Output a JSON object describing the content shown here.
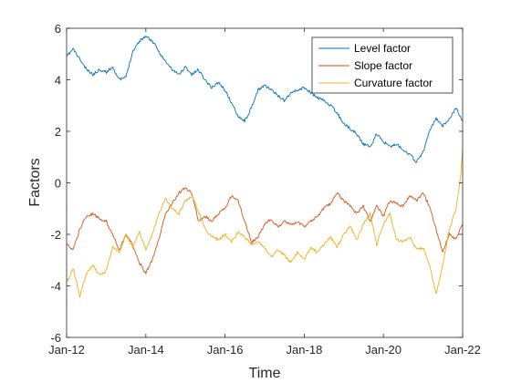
{
  "chart_data": {
    "type": "line",
    "title": "",
    "xlabel": "Time",
    "ylabel": "Factors",
    "xlim": [
      "2012-01-01",
      "2022-01-01"
    ],
    "ylim": [
      -6,
      6
    ],
    "xticks": [
      {
        "date": "2012-01-01",
        "label": "Jan-12"
      },
      {
        "date": "2014-01-01",
        "label": "Jan-14"
      },
      {
        "date": "2016-01-01",
        "label": "Jan-16"
      },
      {
        "date": "2018-01-01",
        "label": "Jan-18"
      },
      {
        "date": "2020-01-01",
        "label": "Jan-20"
      },
      {
        "date": "2022-01-01",
        "label": "Jan-22"
      }
    ],
    "yticks": [
      -6,
      -4,
      -2,
      0,
      2,
      4,
      6
    ],
    "grid": false,
    "legend_position": "top-right",
    "series": [
      {
        "name": "Level factor",
        "color": "#0072BD",
        "points": [
          [
            "2012-01-01",
            4.9
          ],
          [
            "2012-03-01",
            5.2
          ],
          [
            "2012-05-01",
            4.8
          ],
          [
            "2012-07-01",
            4.4
          ],
          [
            "2012-09-01",
            4.2
          ],
          [
            "2012-11-01",
            4.4
          ],
          [
            "2013-01-01",
            4.3
          ],
          [
            "2013-03-01",
            4.5
          ],
          [
            "2013-05-01",
            4.0
          ],
          [
            "2013-07-01",
            4.1
          ],
          [
            "2013-09-01",
            5.1
          ],
          [
            "2013-11-01",
            5.5
          ],
          [
            "2014-01-01",
            5.7
          ],
          [
            "2014-03-01",
            5.5
          ],
          [
            "2014-05-01",
            5.1
          ],
          [
            "2014-07-01",
            4.7
          ],
          [
            "2014-09-01",
            4.4
          ],
          [
            "2014-11-01",
            4.2
          ],
          [
            "2015-01-01",
            4.5
          ],
          [
            "2015-03-01",
            4.2
          ],
          [
            "2015-05-01",
            4.4
          ],
          [
            "2015-07-01",
            4.0
          ],
          [
            "2015-09-01",
            3.7
          ],
          [
            "2015-11-01",
            3.9
          ],
          [
            "2016-01-01",
            3.6
          ],
          [
            "2016-03-01",
            3.1
          ],
          [
            "2016-05-01",
            2.6
          ],
          [
            "2016-07-01",
            2.4
          ],
          [
            "2016-09-01",
            2.9
          ],
          [
            "2016-11-01",
            3.6
          ],
          [
            "2017-01-01",
            3.8
          ],
          [
            "2017-03-01",
            3.6
          ],
          [
            "2017-05-01",
            3.4
          ],
          [
            "2017-07-01",
            3.2
          ],
          [
            "2017-09-01",
            3.5
          ],
          [
            "2017-11-01",
            3.6
          ],
          [
            "2018-01-01",
            3.7
          ],
          [
            "2018-03-01",
            3.5
          ],
          [
            "2018-05-01",
            3.3
          ],
          [
            "2018-07-01",
            3.2
          ],
          [
            "2018-09-01",
            3.0
          ],
          [
            "2018-11-01",
            2.7
          ],
          [
            "2019-01-01",
            2.3
          ],
          [
            "2019-03-01",
            2.1
          ],
          [
            "2019-05-01",
            1.9
          ],
          [
            "2019-07-01",
            1.5
          ],
          [
            "2019-09-01",
            1.4
          ],
          [
            "2019-11-01",
            1.9
          ],
          [
            "2020-01-01",
            1.6
          ],
          [
            "2020-03-01",
            1.4
          ],
          [
            "2020-05-01",
            1.5
          ],
          [
            "2020-07-01",
            1.3
          ],
          [
            "2020-09-01",
            1.1
          ],
          [
            "2020-11-01",
            0.8
          ],
          [
            "2021-01-01",
            1.2
          ],
          [
            "2021-03-01",
            2.0
          ],
          [
            "2021-05-01",
            2.5
          ],
          [
            "2021-07-01",
            2.2
          ],
          [
            "2021-09-01",
            2.5
          ],
          [
            "2021-11-01",
            2.9
          ],
          [
            "2022-01-01",
            2.4
          ]
        ]
      },
      {
        "name": "Slope factor",
        "color": "#D95319",
        "points": [
          [
            "2012-01-01",
            -2.4
          ],
          [
            "2012-03-01",
            -2.6
          ],
          [
            "2012-05-01",
            -1.8
          ],
          [
            "2012-07-01",
            -1.3
          ],
          [
            "2012-09-01",
            -1.2
          ],
          [
            "2012-11-01",
            -1.4
          ],
          [
            "2013-01-01",
            -1.5
          ],
          [
            "2013-03-01",
            -2.0
          ],
          [
            "2013-05-01",
            -2.6
          ],
          [
            "2013-07-01",
            -2.0
          ],
          [
            "2013-09-01",
            -2.4
          ],
          [
            "2013-11-01",
            -3.1
          ],
          [
            "2014-01-01",
            -3.5
          ],
          [
            "2014-03-01",
            -3.0
          ],
          [
            "2014-05-01",
            -2.2
          ],
          [
            "2014-07-01",
            -1.2
          ],
          [
            "2014-09-01",
            -0.8
          ],
          [
            "2014-11-01",
            -0.4
          ],
          [
            "2015-01-01",
            -0.2
          ],
          [
            "2015-03-01",
            -0.4
          ],
          [
            "2015-05-01",
            -1.5
          ],
          [
            "2015-07-01",
            -1.3
          ],
          [
            "2015-09-01",
            -1.5
          ],
          [
            "2015-11-01",
            -1.2
          ],
          [
            "2016-01-01",
            -1.0
          ],
          [
            "2016-03-01",
            -0.5
          ],
          [
            "2016-05-01",
            -0.7
          ],
          [
            "2016-07-01",
            -1.5
          ],
          [
            "2016-09-01",
            -2.3
          ],
          [
            "2016-11-01",
            -2.1
          ],
          [
            "2017-01-01",
            -1.6
          ],
          [
            "2017-03-01",
            -1.4
          ],
          [
            "2017-05-01",
            -1.7
          ],
          [
            "2017-07-01",
            -1.5
          ],
          [
            "2017-09-01",
            -1.6
          ],
          [
            "2017-11-01",
            -1.5
          ],
          [
            "2018-01-01",
            -1.7
          ],
          [
            "2018-03-01",
            -1.5
          ],
          [
            "2018-05-01",
            -1.3
          ],
          [
            "2018-07-01",
            -1.0
          ],
          [
            "2018-09-01",
            -0.8
          ],
          [
            "2018-11-01",
            -0.4
          ],
          [
            "2019-01-01",
            -0.7
          ],
          [
            "2019-03-01",
            -0.9
          ],
          [
            "2019-05-01",
            -1.2
          ],
          [
            "2019-07-01",
            -0.9
          ],
          [
            "2019-09-01",
            -1.5
          ],
          [
            "2019-11-01",
            -0.9
          ],
          [
            "2020-01-01",
            -1.3
          ],
          [
            "2020-03-01",
            -0.7
          ],
          [
            "2020-05-01",
            -0.8
          ],
          [
            "2020-07-01",
            -0.9
          ],
          [
            "2020-09-01",
            -0.5
          ],
          [
            "2020-11-01",
            -0.7
          ],
          [
            "2021-01-01",
            -0.4
          ],
          [
            "2021-03-01",
            -0.9
          ],
          [
            "2021-05-01",
            -1.8
          ],
          [
            "2021-07-01",
            -2.7
          ],
          [
            "2021-09-01",
            -2.0
          ],
          [
            "2021-11-01",
            -2.2
          ],
          [
            "2022-01-01",
            -1.6
          ]
        ]
      },
      {
        "name": "Curvature factor",
        "color": "#EDB120",
        "points": [
          [
            "2012-01-01",
            -3.9
          ],
          [
            "2012-03-01",
            -3.3
          ],
          [
            "2012-05-01",
            -4.4
          ],
          [
            "2012-07-01",
            -3.5
          ],
          [
            "2012-09-01",
            -3.2
          ],
          [
            "2012-11-01",
            -3.6
          ],
          [
            "2013-01-01",
            -3.4
          ],
          [
            "2013-03-01",
            -2.5
          ],
          [
            "2013-05-01",
            -2.7
          ],
          [
            "2013-07-01",
            -2.0
          ],
          [
            "2013-09-01",
            -2.5
          ],
          [
            "2013-11-01",
            -1.9
          ],
          [
            "2014-01-01",
            -2.6
          ],
          [
            "2014-03-01",
            -2.0
          ],
          [
            "2014-05-01",
            -1.2
          ],
          [
            "2014-07-01",
            -0.6
          ],
          [
            "2014-09-01",
            -1.0
          ],
          [
            "2014-11-01",
            -1.2
          ],
          [
            "2015-01-01",
            -0.7
          ],
          [
            "2015-03-01",
            -0.5
          ],
          [
            "2015-05-01",
            -1.1
          ],
          [
            "2015-07-01",
            -1.8
          ],
          [
            "2015-09-01",
            -2.1
          ],
          [
            "2015-11-01",
            -2.2
          ],
          [
            "2016-01-01",
            -2.0
          ],
          [
            "2016-03-01",
            -2.3
          ],
          [
            "2016-05-01",
            -1.9
          ],
          [
            "2016-07-01",
            -2.1
          ],
          [
            "2016-09-01",
            -2.4
          ],
          [
            "2016-11-01",
            -2.3
          ],
          [
            "2017-01-01",
            -2.5
          ],
          [
            "2017-03-01",
            -2.9
          ],
          [
            "2017-05-01",
            -2.6
          ],
          [
            "2017-07-01",
            -2.8
          ],
          [
            "2017-09-01",
            -3.1
          ],
          [
            "2017-11-01",
            -2.7
          ],
          [
            "2018-01-01",
            -3.0
          ],
          [
            "2018-03-01",
            -2.5
          ],
          [
            "2018-05-01",
            -2.7
          ],
          [
            "2018-07-01",
            -2.4
          ],
          [
            "2018-09-01",
            -2.1
          ],
          [
            "2018-11-01",
            -2.5
          ],
          [
            "2019-01-01",
            -2.0
          ],
          [
            "2019-03-01",
            -1.7
          ],
          [
            "2019-05-01",
            -2.2
          ],
          [
            "2019-07-01",
            -1.6
          ],
          [
            "2019-09-01",
            -1.2
          ],
          [
            "2019-11-01",
            -2.4
          ],
          [
            "2020-01-01",
            -1.6
          ],
          [
            "2020-03-01",
            -1.2
          ],
          [
            "2020-05-01",
            -2.2
          ],
          [
            "2020-07-01",
            -2.3
          ],
          [
            "2020-09-01",
            -2.1
          ],
          [
            "2020-11-01",
            -2.6
          ],
          [
            "2021-01-01",
            -2.5
          ],
          [
            "2021-03-01",
            -3.2
          ],
          [
            "2021-05-01",
            -4.3
          ],
          [
            "2021-07-01",
            -3.2
          ],
          [
            "2021-09-01",
            -1.8
          ],
          [
            "2021-11-01",
            -1.0
          ],
          [
            "2021-12-15",
            0.3
          ],
          [
            "2022-01-01",
            1.3
          ]
        ]
      }
    ]
  }
}
